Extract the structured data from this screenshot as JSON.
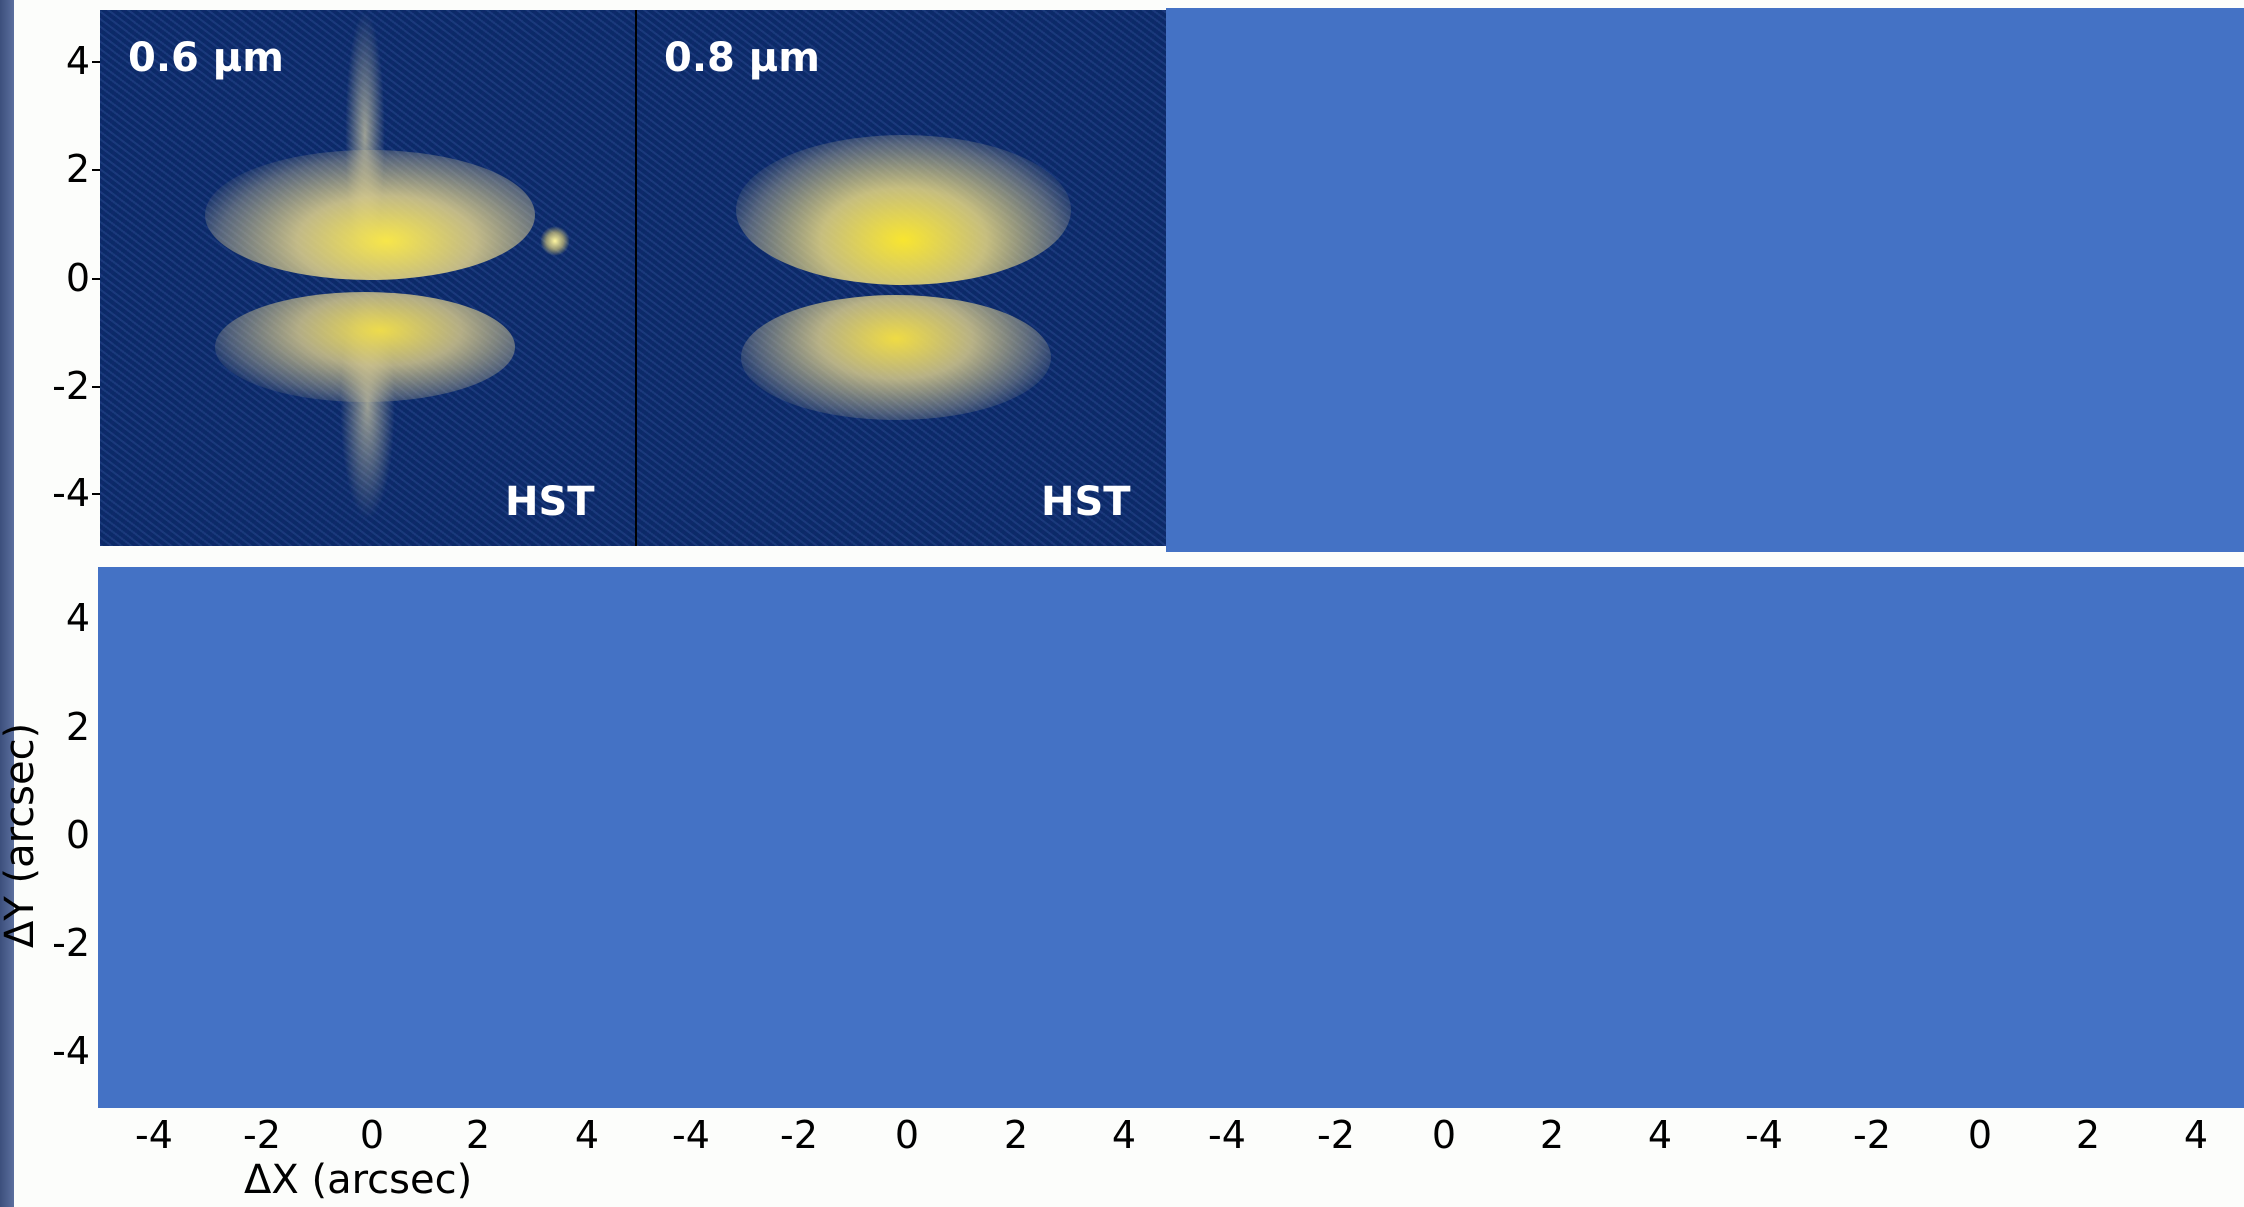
{
  "panels": [
    {
      "wavelength": "0.6 μm",
      "instrument": "HST"
    },
    {
      "wavelength": "0.8 μm",
      "instrument": "HST"
    }
  ],
  "axes": {
    "xlabel": "ΔX (arcsec)",
    "ylabel": "ΔY (arcsec)",
    "yticks": [
      "4",
      "2",
      "0",
      "-2",
      "-4"
    ],
    "xticks": [
      "-4",
      "-2",
      "0",
      "2",
      "4"
    ]
  },
  "colors": {
    "masked_block": "#4472c5",
    "image_background": "#0b2a68",
    "disk_glow": "#f4e04a"
  }
}
